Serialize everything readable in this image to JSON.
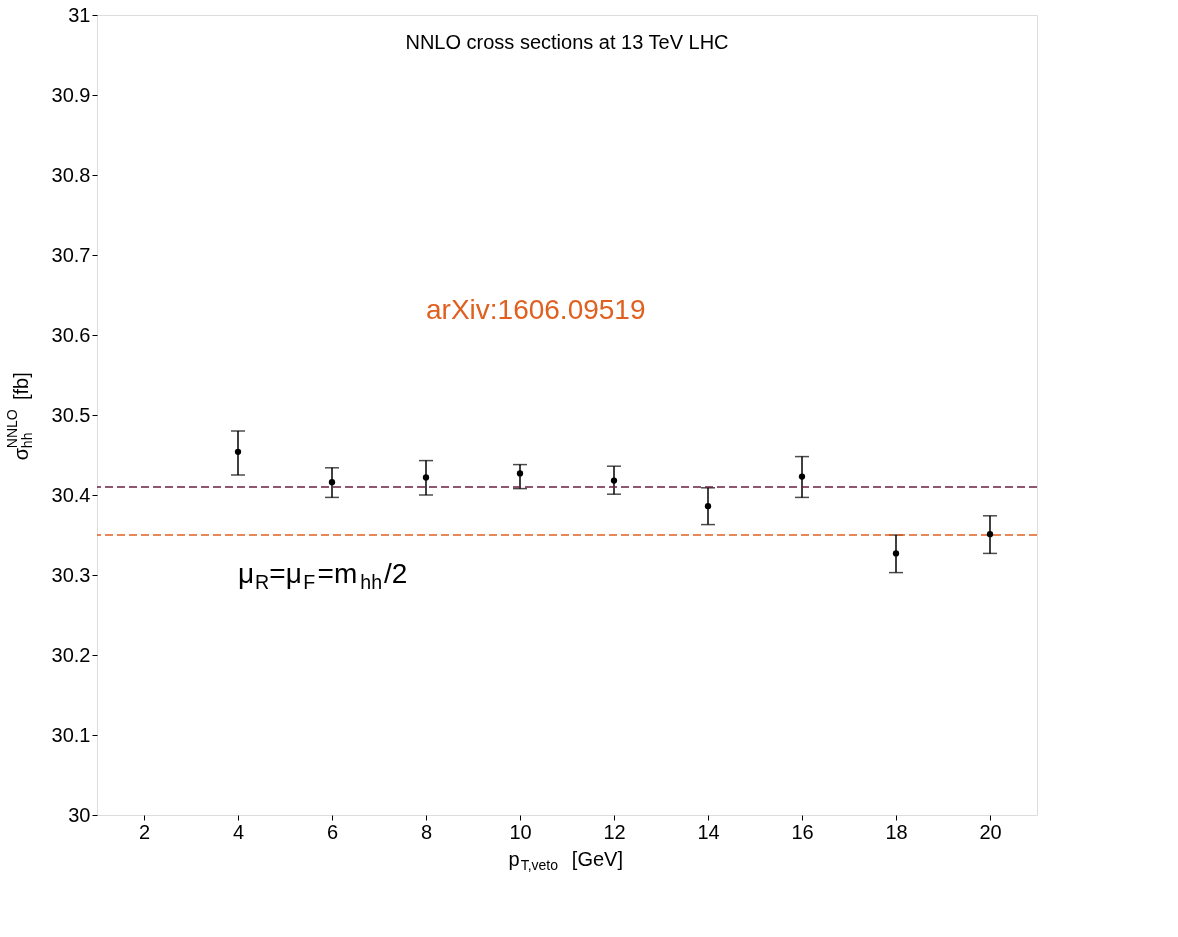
{
  "chart_data": {
    "type": "scatter",
    "title": "NNLO cross sections at 13 TeV LHC",
    "xlabel": "p$_{T,veto}$ [GeV]",
    "ylabel": "σ$_{hh}$$^{NNLO}$ [fb]",
    "x": [
      4,
      6,
      8,
      10,
      12,
      14,
      16,
      18,
      20
    ],
    "series": [
      {
        "color": "#000000",
        "values": [
          30.454,
          30.416,
          30.422,
          30.427,
          30.418,
          30.386,
          30.423,
          30.327,
          30.351
        ],
        "errors": [
          [
            30.425,
            30.48
          ],
          [
            30.397,
            30.434
          ],
          [
            30.4,
            30.443
          ],
          [
            30.408,
            30.438
          ],
          [
            30.401,
            30.436
          ],
          [
            30.363,
            30.409
          ],
          [
            30.397,
            30.448
          ],
          [
            30.303,
            30.35
          ],
          [
            30.327,
            30.374
          ]
        ]
      }
    ],
    "xlim": [
      1,
      21
    ],
    "xticks": [
      2,
      4,
      6,
      8,
      10,
      12,
      14,
      16,
      18,
      20
    ],
    "ylim": [
      30,
      31
    ],
    "yticks": [
      30,
      30.1,
      30.2,
      30.3,
      30.4,
      30.5,
      30.6,
      30.7,
      30.8,
      30.9,
      31
    ],
    "ref_lines": [
      {
        "axis": "y",
        "value": 30.41,
        "color": "#6b2040",
        "line_style": "dashed"
      },
      {
        "axis": "y",
        "value": 30.35,
        "color": "#e06020",
        "line_style": "dashed"
      }
    ],
    "annotations": [
      "arXiv:1606.09519",
      "μ$_{R}$=μ$_{F}$=m$_{hh}$/2"
    ],
    "marker": "circle",
    "grid": false
  }
}
